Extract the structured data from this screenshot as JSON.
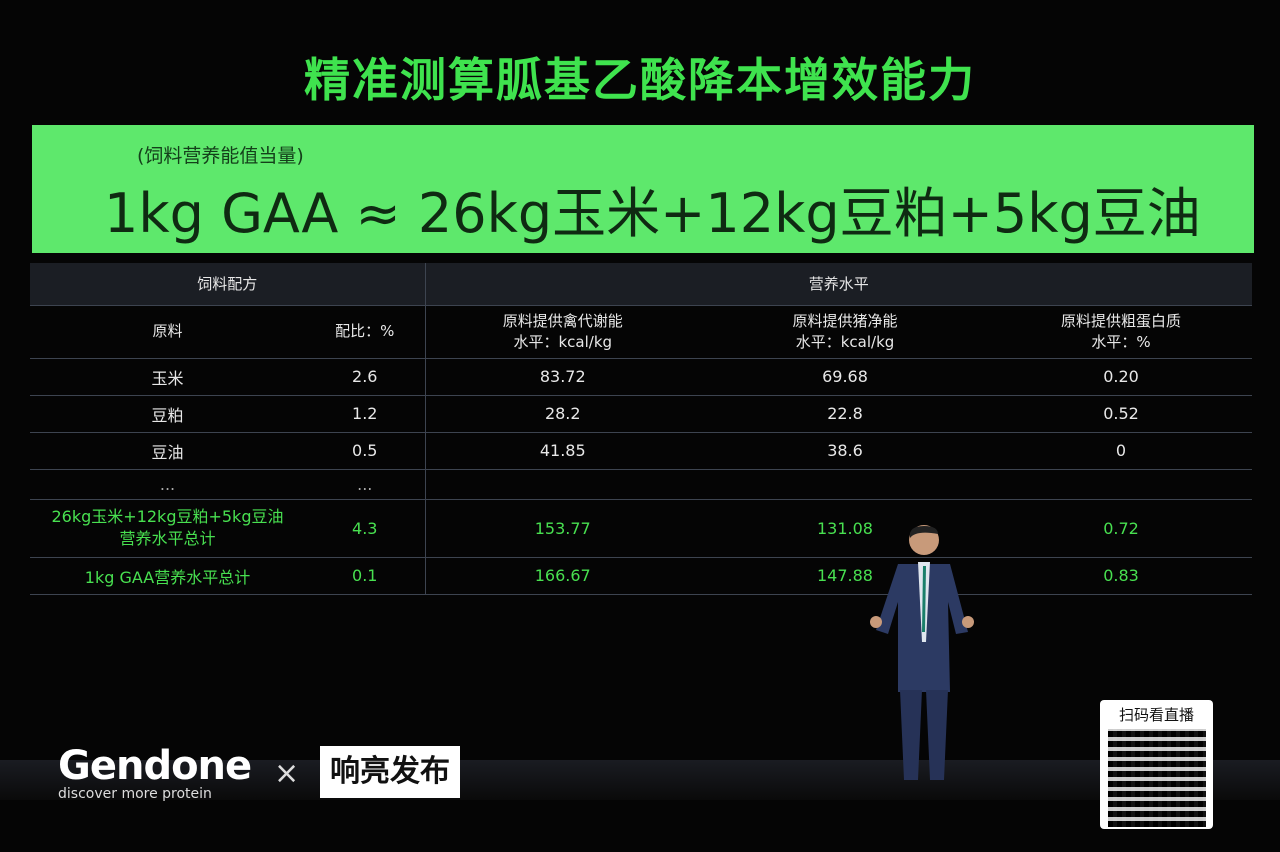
{
  "slide": {
    "title": "精准测算胍基乙酸降本增效能力",
    "banner_sub": "(饲料营养能值当量)",
    "banner_main": "1kg GAA ≈ 26kg玉米+12kg豆粕+5kg豆油",
    "table": {
      "group_headers": [
        "饲料配方",
        "营养水平"
      ],
      "columns": [
        "原料",
        "配比：%",
        "原料提供禽代谢能\n水平：kcal/kg",
        "原料提供猪净能\n水平：kcal/kg",
        "原料提供粗蛋白质\n水平：%"
      ],
      "rows": [
        [
          "玉米",
          "2.6",
          "83.72",
          "69.68",
          "0.20"
        ],
        [
          "豆粕",
          "1.2",
          "28.2",
          "22.8",
          "0.52"
        ],
        [
          "豆油",
          "0.5",
          "41.85",
          "38.6",
          "0"
        ],
        [
          "...",
          "...",
          "",
          "",
          ""
        ],
        [
          "26kg玉米+12kg豆粕+5kg豆油\n营养水平总计",
          "4.3",
          "153.77",
          "131.08",
          "0.72"
        ],
        [
          "1kg GAA营养水平总计",
          "0.1",
          "166.67",
          "147.88",
          "0.83"
        ]
      ]
    }
  },
  "overlay": {
    "logo": "Gendone",
    "tagline": "discover more protein",
    "separator": "×",
    "partner": "响亮发布",
    "qr_label": "扫码看直播"
  },
  "colors": {
    "accent_green": "#3fe34e",
    "banner": "#5ee86c"
  }
}
